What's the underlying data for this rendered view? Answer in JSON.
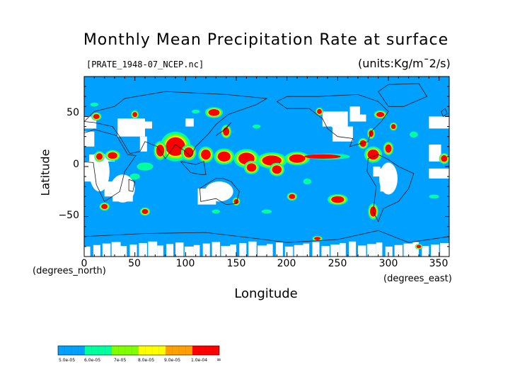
{
  "chart_data": {
    "type": "heatmap",
    "title": "Monthly Mean Precipitation Rate at surface",
    "file_label": "[PRATE_1948-07_NCEP.nc]",
    "units_label": "(units:Kg/m¯2/s)",
    "xlabel": "Longitude",
    "ylabel": "Latitude",
    "x_units": "(degrees_east)",
    "y_units": "(degrees_north)",
    "xlim": [
      0,
      360
    ],
    "ylim": [
      -90,
      90
    ],
    "x_ticks": [
      "0",
      "50",
      "100",
      "150",
      "200",
      "250",
      "300",
      "350"
    ],
    "y_ticks": [
      "50",
      "0",
      "−50"
    ],
    "colorbar": {
      "labels": [
        "5.0e-05",
        "6.0e-05",
        "7e-05",
        "8.0e-05",
        "9.0e-05",
        "1.0e-04",
        "∞"
      ],
      "colors": [
        "#00a0ff",
        "#00ffa0",
        "#80ff00",
        "#ffff00",
        "#ffa000",
        "#ff0000"
      ]
    },
    "background_color": "#00a0ff",
    "no_data_color": "#ffffff",
    "contour_color": "#1a1a1a"
  }
}
